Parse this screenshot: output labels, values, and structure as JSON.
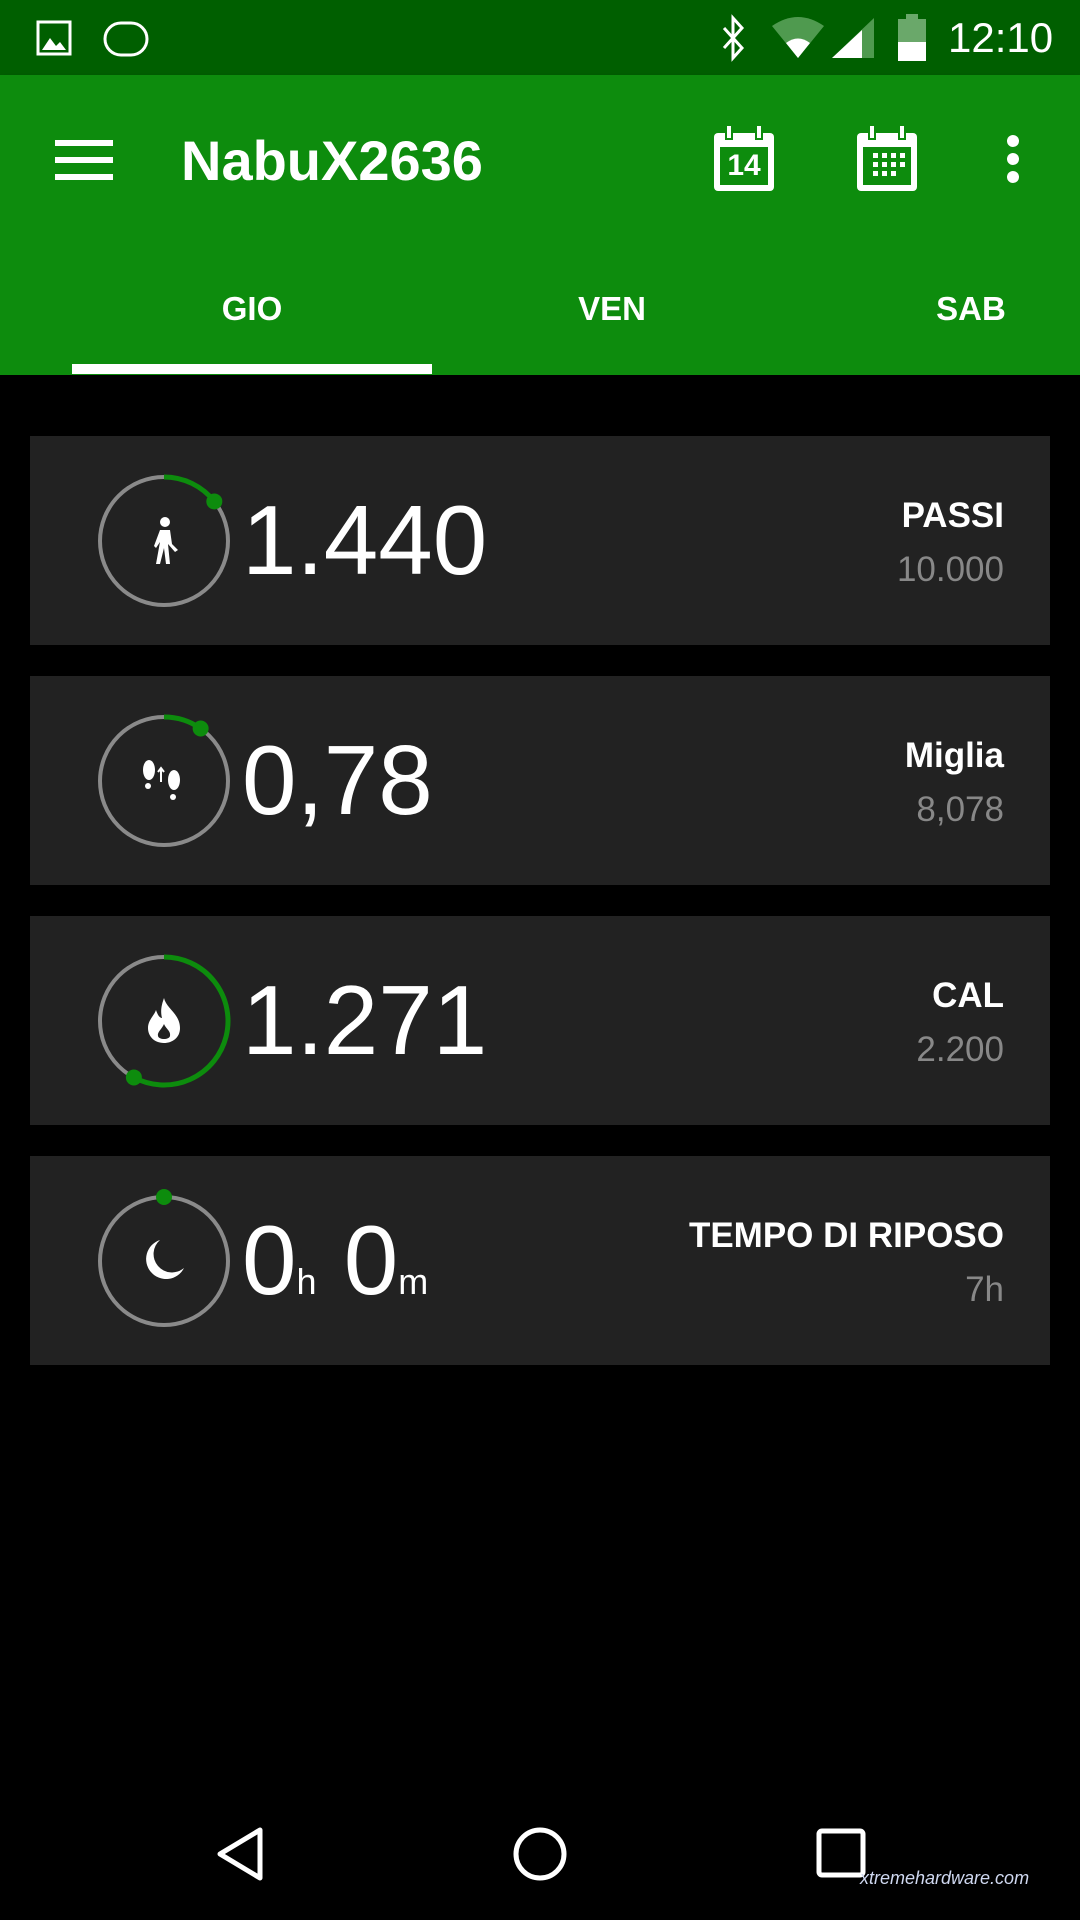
{
  "status_bar": {
    "time": "12:10",
    "icons": [
      "image-icon",
      "sync-icon",
      "bluetooth-icon",
      "wifi-icon",
      "signal-icon",
      "battery-icon"
    ]
  },
  "app_bar": {
    "title": "NabuX2636",
    "icons": [
      "menu-icon",
      "calendar-today-icon",
      "calendar-month-icon",
      "more-vert-icon"
    ],
    "today_day": "14"
  },
  "tabs": [
    {
      "label": "GIO",
      "selected": true
    },
    {
      "label": "VEN"
    },
    {
      "label": "SAB"
    }
  ],
  "colors": {
    "accent": "#0d8c0d",
    "status_bar": "#005f00",
    "card": "#222222",
    "ring_track": "#8a8a8a"
  },
  "cards": [
    {
      "icon": "walking-icon",
      "value": "1.440",
      "label": "PASSI",
      "goal": "10.000",
      "progress": 0.144
    },
    {
      "icon": "footsteps-icon",
      "value": "0,78",
      "label": "Miglia",
      "goal": "8,078",
      "progress": 0.097
    },
    {
      "icon": "flame-icon",
      "value": "1.271",
      "label": "CAL",
      "goal": "2.200",
      "progress": 0.578
    },
    {
      "icon": "moon-icon",
      "hours": "0",
      "h_unit": "h",
      "minutes": "0",
      "m_unit": "m",
      "label": "TEMPO DI RIPOSO",
      "goal": "7h",
      "progress": 0
    }
  ],
  "watermark": "xtremehardware.com"
}
